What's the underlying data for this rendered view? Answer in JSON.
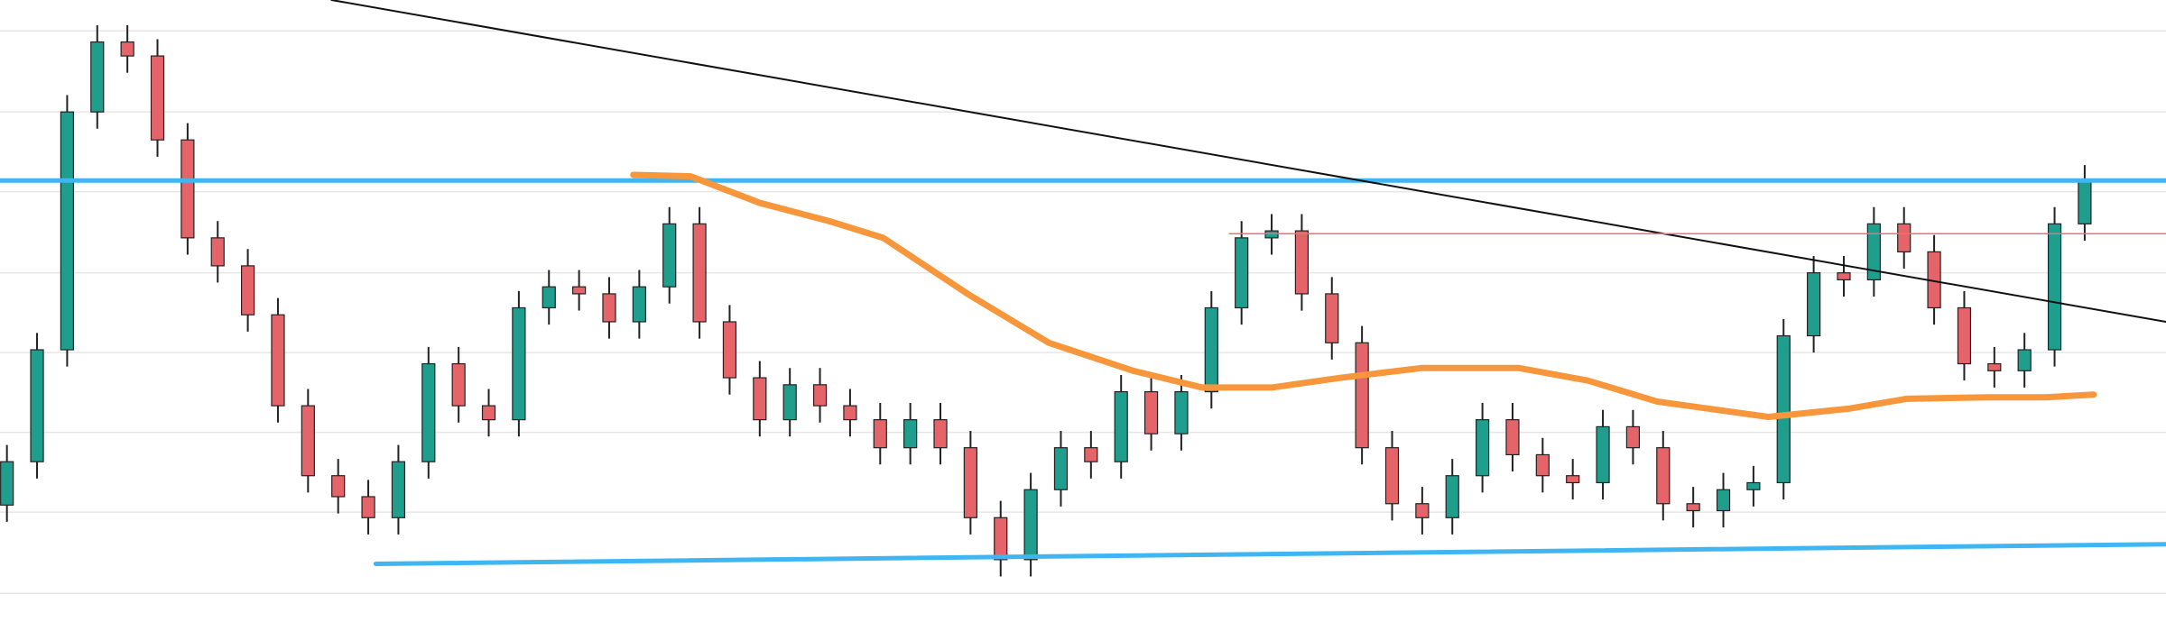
{
  "chart_data": {
    "type": "candlestick",
    "x": [
      0,
      1,
      2,
      3,
      4,
      5,
      6,
      7,
      8,
      9,
      10,
      11,
      12,
      13,
      14,
      15,
      16,
      17,
      18,
      19,
      20,
      21,
      22,
      23,
      24,
      25,
      26,
      27,
      28,
      29,
      30,
      31,
      32,
      33,
      34,
      35,
      36,
      37,
      38,
      39,
      40,
      41,
      42,
      43,
      44,
      45,
      46,
      47,
      48,
      49,
      50,
      51,
      52,
      53,
      54,
      55,
      56,
      57,
      58,
      59,
      60,
      61,
      62,
      63,
      64,
      65,
      66,
      67,
      68,
      69
    ],
    "open": [
      90,
      121,
      201,
      371,
      421,
      411,
      351,
      281,
      261,
      226,
      161,
      111,
      96,
      81,
      121,
      191,
      161,
      151,
      231,
      246,
      241,
      221,
      246,
      291,
      221,
      181,
      151,
      176,
      161,
      151,
      131,
      151,
      131,
      81,
      51,
      101,
      131,
      121,
      171,
      141,
      171,
      231,
      281,
      286,
      241,
      206,
      131,
      91,
      81,
      111,
      151,
      126,
      111,
      106,
      146,
      131,
      91,
      86,
      101,
      106,
      211,
      256,
      251,
      291,
      271,
      231,
      191,
      186,
      201,
      291
    ],
    "high": [
      133,
      213,
      383,
      433,
      433,
      423,
      363,
      293,
      273,
      238,
      173,
      123,
      108,
      133,
      203,
      203,
      173,
      243,
      258,
      258,
      253,
      258,
      303,
      303,
      233,
      193,
      188,
      188,
      173,
      163,
      163,
      163,
      143,
      93,
      113,
      143,
      143,
      183,
      183,
      183,
      243,
      293,
      298,
      298,
      253,
      218,
      143,
      103,
      123,
      163,
      163,
      138,
      123,
      158,
      158,
      143,
      103,
      113,
      118,
      223,
      268,
      268,
      303,
      303,
      283,
      243,
      203,
      213,
      303,
      333
    ],
    "low": [
      78,
      109,
      189,
      359,
      399,
      339,
      269,
      249,
      214,
      149,
      99,
      84,
      69,
      69,
      109,
      149,
      139,
      139,
      219,
      229,
      209,
      209,
      234,
      209,
      169,
      139,
      139,
      149,
      139,
      119,
      119,
      119,
      69,
      39,
      39,
      89,
      109,
      109,
      129,
      129,
      159,
      219,
      269,
      229,
      194,
      119,
      79,
      69,
      69,
      99,
      114,
      99,
      94,
      94,
      119,
      79,
      74,
      74,
      89,
      94,
      199,
      239,
      239,
      259,
      219,
      179,
      174,
      174,
      189,
      279
    ],
    "close": [
      121,
      201,
      371,
      421,
      411,
      351,
      281,
      261,
      226,
      161,
      111,
      96,
      81,
      121,
      191,
      161,
      151,
      231,
      246,
      241,
      221,
      246,
      291,
      221,
      181,
      151,
      176,
      161,
      151,
      131,
      151,
      131,
      81,
      51,
      101,
      131,
      121,
      171,
      141,
      171,
      231,
      281,
      286,
      241,
      206,
      131,
      91,
      81,
      111,
      151,
      126,
      111,
      106,
      146,
      131,
      91,
      86,
      101,
      106,
      211,
      256,
      251,
      291,
      271,
      231,
      191,
      186,
      201,
      291,
      321
    ],
    "up_color": "#1f9e8e",
    "down_color": "#e5646a",
    "xlim": [
      -0.23,
      71.7
    ],
    "ylim": [
      0,
      451
    ],
    "yticks": [
      27,
      85,
      142,
      199,
      256,
      314,
      371,
      429
    ],
    "grid": true,
    "lines": [
      {
        "x": [
          -0.23,
          71.7
        ],
        "values": [
          322,
          322
        ],
        "color": "#3fb6f2",
        "width": 5
      },
      {
        "x": [
          12.25,
          71.7
        ],
        "values": [
          48,
          62
        ],
        "color": "#3fb6f2",
        "width": 5
      },
      {
        "x": [
          10.78,
          71.7
        ],
        "values": [
          451,
          221
        ],
        "color": "#111111",
        "width": 2
      },
      {
        "x": [
          40.6,
          71.7
        ],
        "values": [
          284,
          284
        ],
        "color": "#f07070",
        "width": 1.5
      },
      {
        "x": [
          20.8,
          22.7,
          25.0,
          27.3,
          29.1,
          31.9,
          34.6,
          37.4,
          39.7,
          42.0,
          44.3,
          47.0,
          50.2,
          52.5,
          54.8,
          58.5,
          61.2,
          63.1,
          65.8,
          67.7,
          69.3
        ],
        "values": [
          326,
          325,
          306,
          293,
          281,
          241,
          206,
          186,
          174,
          174,
          181,
          188,
          188,
          179,
          164,
          153,
          159,
          166,
          167,
          167,
          169
        ],
        "color": "#f7963a",
        "width": 7
      }
    ]
  }
}
